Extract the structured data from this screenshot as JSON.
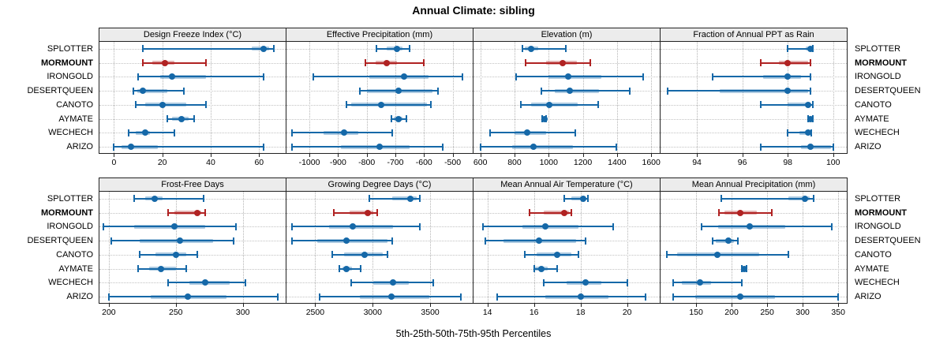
{
  "title": "Annual Climate: sibling",
  "caption": "5th-25th-50th-75th-95th Percentiles",
  "sites": [
    "SPLOTTER",
    "MORMOUNT",
    "IRONGOLD",
    "DESERTQUEEN",
    "CANOTO",
    "AYMATE",
    "WECHECH",
    "ARIZO"
  ],
  "highlight_site": "MORMOUNT",
  "colors": {
    "series": "#1568a8",
    "series_band": "rgba(21,104,168,0.35)",
    "highlight": "#b02222",
    "highlight_band": "rgba(176,34,34,0.35)",
    "grid": "#b4b4b4",
    "strip_bg": "#ececec",
    "border": "#222222"
  },
  "chart_data": {
    "type": "dotplot-percentiles",
    "title": "Annual Climate: sibling",
    "percentiles": [
      "5th",
      "25th",
      "50th",
      "75th",
      "95th"
    ],
    "grid": "dotted",
    "rows": [
      "SPLOTTER",
      "MORMOUNT",
      "IRONGOLD",
      "DESERTQUEEN",
      "CANOTO",
      "AYMATE",
      "WECHECH",
      "ARIZO"
    ],
    "panels": [
      {
        "title": "Design Freeze Index (°C)",
        "grid_row": 0,
        "grid_col": 0,
        "xlim": [
          -6,
          71
        ],
        "ticks": [
          0,
          20,
          40,
          60
        ],
        "values": [
          [
            12,
            57,
            62,
            64,
            66
          ],
          [
            12,
            16,
            21,
            25,
            38
          ],
          [
            10,
            19,
            24,
            38,
            62
          ],
          [
            8,
            9.5,
            12,
            22,
            29
          ],
          [
            9,
            13,
            20,
            30,
            38
          ],
          [
            22,
            24,
            28,
            31,
            33
          ],
          [
            6,
            9,
            13,
            15,
            25
          ],
          [
            0,
            3,
            7,
            18,
            62
          ]
        ]
      },
      {
        "title": "Effective Precipitation (mm)",
        "grid_row": 0,
        "grid_col": 1,
        "xlim": [
          -1080,
          -430
        ],
        "ticks": [
          -1000,
          -900,
          -800,
          -700,
          -600,
          -500
        ],
        "values": [
          [
            -765,
            -730,
            -695,
            -675,
            -650
          ],
          [
            -805,
            -770,
            -730,
            -695,
            -600
          ],
          [
            -985,
            -790,
            -670,
            -585,
            -465
          ],
          [
            -825,
            -800,
            -690,
            -570,
            -550
          ],
          [
            -870,
            -855,
            -750,
            -590,
            -575
          ],
          [
            -715,
            -705,
            -690,
            -675,
            -660
          ],
          [
            -1060,
            -950,
            -880,
            -830,
            -710
          ],
          [
            -1060,
            -890,
            -755,
            -650,
            -535
          ]
        ]
      },
      {
        "title": "Elevation (m)",
        "grid_row": 0,
        "grid_col": 2,
        "xlim": [
          560,
          1650
        ],
        "ticks": [
          600,
          800,
          1000,
          1200,
          1400,
          1600
        ],
        "values": [
          [
            845,
            860,
            895,
            940,
            1100
          ],
          [
            865,
            985,
            1080,
            1165,
            1245
          ],
          [
            810,
            1000,
            1115,
            1310,
            1555
          ],
          [
            955,
            1035,
            1125,
            1295,
            1475
          ],
          [
            835,
            895,
            1005,
            1170,
            1290
          ],
          [
            960,
            968,
            975,
            980,
            985
          ],
          [
            655,
            800,
            875,
            985,
            1155
          ],
          [
            600,
            785,
            910,
            1140,
            1395
          ]
        ]
      },
      {
        "title": "Fraction of Annual PPT as Rain",
        "grid_row": 0,
        "grid_col": 3,
        "xlim": [
          92.4,
          100.6
        ],
        "ticks": [
          94,
          96,
          98,
          100
        ],
        "values": [
          [
            98,
            98.8,
            99,
            99,
            99.1
          ],
          [
            96.8,
            97.6,
            98,
            98.9,
            99
          ],
          [
            94.7,
            96.9,
            98,
            98.6,
            99
          ],
          [
            92.7,
            95,
            98,
            98.9,
            99
          ],
          [
            96.8,
            98,
            98.9,
            99,
            99.1
          ],
          [
            98.9,
            98.95,
            99,
            99.05,
            99.1
          ],
          [
            98,
            98.5,
            98.9,
            99,
            99.05
          ],
          [
            96.8,
            98.6,
            99,
            99.9,
            100
          ]
        ]
      },
      {
        "title": "Frost-Free Days",
        "grid_row": 1,
        "grid_col": 0,
        "xlim": [
          193,
          332
        ],
        "ticks": [
          200,
          250,
          300
        ],
        "values": [
          [
            219,
            227,
            234,
            240,
            271
          ],
          [
            244,
            249,
            266,
            269,
            272
          ],
          [
            196,
            219,
            249,
            272,
            295
          ],
          [
            202,
            223,
            253,
            278,
            293
          ],
          [
            223,
            235,
            250,
            258,
            266
          ],
          [
            222,
            230,
            239,
            250,
            258
          ],
          [
            244,
            260,
            272,
            290,
            302
          ],
          [
            200,
            231,
            259,
            288,
            326
          ]
        ]
      },
      {
        "title": "Growing Degree Days (°C)",
        "grid_row": 1,
        "grid_col": 1,
        "xlim": [
          2250,
          3870
        ],
        "ticks": [
          2500,
          3000,
          3500
        ],
        "values": [
          [
            2970,
            3170,
            3330,
            3380,
            3410
          ],
          [
            2660,
            2800,
            2960,
            3005,
            3040
          ],
          [
            2300,
            2620,
            2830,
            3180,
            3410
          ],
          [
            2300,
            2520,
            2770,
            3130,
            3170
          ],
          [
            2650,
            2750,
            2930,
            3090,
            3130
          ],
          [
            2710,
            2735,
            2775,
            2820,
            2895
          ],
          [
            2810,
            3005,
            3175,
            3315,
            3525
          ],
          [
            2540,
            2890,
            3165,
            3490,
            3770
          ]
        ]
      },
      {
        "title": "Mean Annual Air Temperature (°C)",
        "grid_row": 1,
        "grid_col": 2,
        "xlim": [
          13.4,
          21.4
        ],
        "ticks": [
          14,
          16,
          18,
          20
        ],
        "values": [
          [
            17.3,
            17.6,
            18.1,
            18.2,
            18.3
          ],
          [
            15.8,
            16.4,
            17.3,
            17.5,
            17.6
          ],
          [
            13.8,
            15.5,
            16.5,
            17.9,
            19.4
          ],
          [
            13.9,
            14.7,
            16.2,
            17.8,
            18.2
          ],
          [
            15.6,
            16.1,
            17.0,
            17.6,
            17.9
          ],
          [
            16.0,
            16.05,
            16.3,
            16.6,
            17.0
          ],
          [
            16.4,
            17.4,
            18.2,
            18.9,
            20.0
          ],
          [
            14.4,
            16.5,
            18.0,
            19.2,
            20.8
          ]
        ]
      },
      {
        "title": "Mean Annual Precipitation (mm)",
        "grid_row": 1,
        "grid_col": 3,
        "xlim": [
          100,
          362
        ],
        "ticks": [
          150,
          200,
          250,
          300,
          350
        ],
        "values": [
          [
            186,
            280,
            303,
            310,
            315
          ],
          [
            182,
            190,
            212,
            235,
            257
          ],
          [
            158,
            181,
            226,
            275,
            341
          ],
          [
            173,
            178,
            196,
            203,
            209
          ],
          [
            109,
            123,
            180,
            239,
            280
          ],
          [
            214,
            216,
            218,
            220,
            221
          ],
          [
            118,
            130,
            155,
            171,
            214
          ],
          [
            118,
            149,
            212,
            261,
            350
          ]
        ]
      }
    ]
  }
}
